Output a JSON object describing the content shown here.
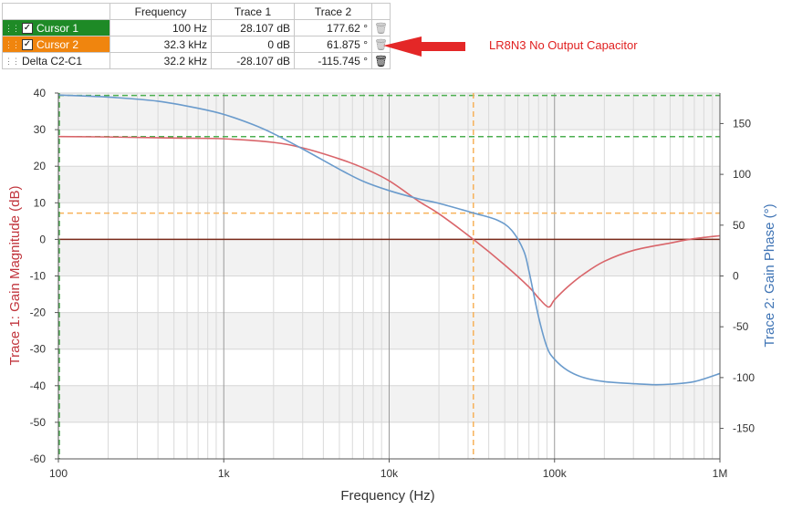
{
  "cursor_table": {
    "headers": [
      "",
      "Frequency",
      "Trace 1",
      "Trace 2"
    ],
    "rows": [
      {
        "name": "Cursor 1",
        "frequency": "100 Hz",
        "trace1": "28.107 dB",
        "trace2": "177.62 °",
        "color": "#1e8a26",
        "checked": true
      },
      {
        "name": "Cursor 2",
        "frequency": "32.3 kHz",
        "trace1": "0 dB",
        "trace2": "61.875 °",
        "color": "#f0850e",
        "checked": true
      },
      {
        "name": "Delta C2-C1",
        "frequency": "32.2 kHz",
        "trace1": "-28.107 dB",
        "trace2": "-115.745 °"
      }
    ],
    "icons": {
      "grip": "grip-dots-icon",
      "delete": "trash-icon",
      "check": "checkbox-icon"
    }
  },
  "annotation": {
    "text": "LR8N3 No Output Capacitor",
    "color": "#e02020",
    "arrow": "red-arrow-left"
  },
  "chart_data": {
    "type": "line",
    "xlabel": "Frequency (Hz)",
    "xscale": "log",
    "xlim": [
      100,
      1000000
    ],
    "xticks": [
      100,
      1000,
      10000,
      100000,
      1000000
    ],
    "xtick_labels": [
      "100",
      "1k",
      "10k",
      "100k",
      "1M"
    ],
    "y_left": {
      "label": "Trace 1: Gain Magnitude (dB)",
      "lim": [
        -60,
        40
      ],
      "ticks": [
        -60,
        -50,
        -40,
        -30,
        -20,
        -10,
        0,
        10,
        20,
        30,
        40
      ],
      "color": "#c1343c"
    },
    "y_right": {
      "label": "Trace 2: Gain Phase (°)",
      "lim": [
        -180,
        180
      ],
      "ticks": [
        -150,
        -100,
        -50,
        0,
        50,
        100,
        150
      ],
      "color": "#3f74b5"
    },
    "grid": true,
    "series": [
      {
        "name": "Trace 1",
        "axis": "left",
        "color": "#d9656a",
        "x": [
          100,
          200,
          500,
          1000,
          2000,
          3000,
          5000,
          7000,
          10000,
          15000,
          20000,
          32300,
          50000,
          70000,
          80000,
          92000,
          100000,
          120000,
          150000,
          200000,
          300000,
          500000,
          700000,
          1000000
        ],
        "y": [
          28.1,
          28.0,
          27.7,
          27.5,
          26.5,
          25,
          22,
          19.5,
          16,
          10.5,
          7,
          0,
          -7,
          -13,
          -16,
          -18.5,
          -16.5,
          -13,
          -9.5,
          -6,
          -3,
          -1,
          0.2,
          1
        ]
      },
      {
        "name": "Trace 2",
        "axis": "right",
        "color": "#6a9bcc",
        "x": [
          100,
          200,
          400,
          700,
          1000,
          1500,
          2000,
          3000,
          5000,
          7000,
          10000,
          15000,
          20000,
          32300,
          45000,
          55000,
          65000,
          70000,
          80000,
          90000,
          100000,
          120000,
          150000,
          200000,
          300000,
          400000,
          500000,
          700000,
          1000000
        ],
        "y": [
          178,
          176,
          172,
          165,
          159,
          149,
          140,
          125,
          105,
          93,
          84,
          76,
          71.5,
          62,
          55,
          45,
          25,
          5,
          -40,
          -70,
          -82,
          -93,
          -100,
          -104,
          -106,
          -107,
          -106.5,
          -104,
          -96
        ]
      }
    ],
    "reference_lines": [
      {
        "label": "zero-line",
        "axis": "left",
        "value": 0,
        "color": "#7a2a1a",
        "style": "solid"
      },
      {
        "label": "Cursor 1",
        "axis": "left",
        "value": 28.107,
        "color": "#4caf50",
        "style": "dashed"
      },
      {
        "label": "Cursor 1",
        "axis": "right",
        "value": 177.62,
        "color": "#4caf50",
        "style": "dashed"
      },
      {
        "label": "Cursor 2",
        "axis": "right",
        "value": 61.875,
        "color": "#f7b25a",
        "style": "dashed"
      }
    ],
    "cursor_verticals": [
      {
        "label": "Cursor 1",
        "x": 100,
        "color": "#4caf50"
      },
      {
        "label": "Cursor 2",
        "x": 32300,
        "color": "#f7b25a"
      }
    ]
  }
}
